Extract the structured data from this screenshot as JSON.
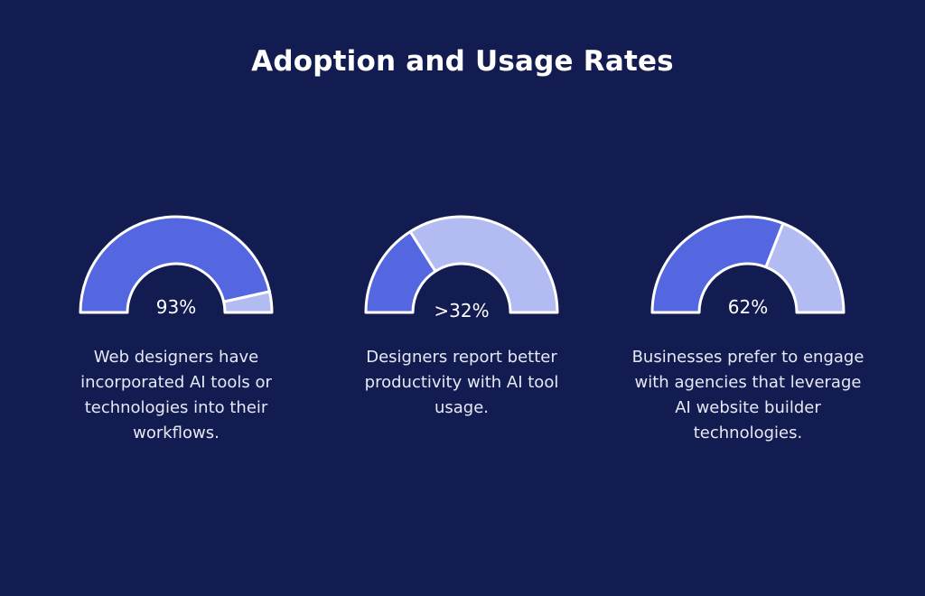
{
  "colors": {
    "background": "#131c50",
    "filled": "#5467e0",
    "remaining": "#b2bcf2",
    "outline": "#ffffff",
    "text": "#ffffff"
  },
  "title": "Adoption and Usage Rates",
  "chart_data": [
    {
      "type": "gauge",
      "value": 93,
      "max": 100,
      "value_label": "93%",
      "description": "Web designers have incorporated AI tools or technologies into their workflows."
    },
    {
      "type": "gauge",
      "value": 32,
      "max": 100,
      "value_label": ">32%",
      "description": "Designers report better productivity with AI tool usage."
    },
    {
      "type": "gauge",
      "value": 62,
      "max": 100,
      "value_label": "62%",
      "description": "Businesses prefer to engage with agencies that leverage AI website builder technologies."
    }
  ]
}
